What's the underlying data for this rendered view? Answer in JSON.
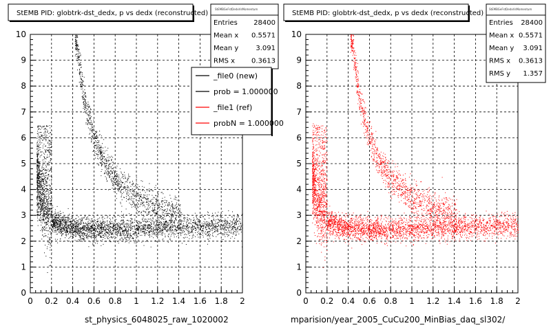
{
  "panels": [
    {
      "title": "StEMB PID: globtrk-dst_dedx,  p vs dedx (reconstructed)",
      "xaxis_title": "st_physics_6048025_raw_1020002",
      "stats": {
        "header": "StEMBGeFstDedxVsMomentum",
        "rows": [
          {
            "label": "Entries",
            "value": "28400"
          },
          {
            "label": "Mean x",
            "value": "0.5571"
          },
          {
            "label": "Mean y",
            "value": "3.091"
          },
          {
            "label": "RMS x",
            "value": "0.3613"
          }
        ]
      },
      "legend": [
        {
          "label": "_file0 (new)",
          "color": "#000000"
        },
        {
          "label": "prob = 1.000000",
          "color": "#000000"
        },
        {
          "label": "_file1 (ref)",
          "color": "#ff0000"
        },
        {
          "label": "probN = 1.000000",
          "color": "#ff0000"
        }
      ],
      "marker_color": "#000000"
    },
    {
      "title": "StEMB PID: globtrk-dst_dedx,  p vs dedx (reconstructed)",
      "xaxis_title": "mparision/year_2005_CuCu200_MinBias_daq_sl302/",
      "stats": {
        "header": "StEMBGeFstDedxVsMomentum",
        "rows": [
          {
            "label": "Entries",
            "value": "28400"
          },
          {
            "label": "Mean x",
            "value": "0.5571"
          },
          {
            "label": "Mean y",
            "value": "3.091"
          },
          {
            "label": "RMS x",
            "value": "0.3613"
          },
          {
            "label": "RMS y",
            "value": "1.357"
          }
        ]
      },
      "legend": [],
      "marker_color": "#ff0000"
    }
  ],
  "chart_data": [
    {
      "type": "scatter",
      "title": "StEMB PID: globtrk-dst_dedx,  p vs dedx (reconstructed)",
      "xlabel": "st_physics_6048025_raw_1020002",
      "ylabel": "",
      "xlim": [
        0,
        2
      ],
      "ylim": [
        0,
        10
      ],
      "xticks": [
        0,
        0.2,
        0.4,
        0.6,
        0.8,
        1,
        1.2,
        1.4,
        1.6,
        1.8,
        2
      ],
      "yticks": [
        0,
        1,
        2,
        3,
        4,
        5,
        6,
        7,
        8,
        9,
        10
      ],
      "grid": true,
      "series": [
        {
          "name": "_file0 (new)",
          "color": "#000000",
          "bands": [
            {
              "x": [
                0.06,
                0.1,
                0.15,
                0.2,
                0.3,
                0.4,
                0.6,
                0.8,
                1.0,
                1.4,
                2.0
              ],
              "y": [
                4.6,
                3.6,
                3.1,
                2.8,
                2.6,
                2.5,
                2.45,
                2.45,
                2.5,
                2.55,
                2.6
              ]
            },
            {
              "x": [
                0.42,
                0.47,
                0.5,
                0.55,
                0.6,
                0.7,
                0.8,
                1.0,
                1.2,
                1.4
              ],
              "y": [
                10,
                8.6,
                7.6,
                6.8,
                6.0,
                5.0,
                4.4,
                3.7,
                3.3,
                3.05
              ]
            }
          ]
        }
      ]
    },
    {
      "type": "scatter",
      "title": "StEMB PID: globtrk-dst_dedx,  p vs dedx (reconstructed)",
      "xlabel": "mparision/year_2005_CuCu200_MinBias_daq_sl302/",
      "ylabel": "",
      "xlim": [
        0,
        2
      ],
      "ylim": [
        0,
        10
      ],
      "xticks": [
        0,
        0.2,
        0.4,
        0.6,
        0.8,
        1,
        1.2,
        1.4,
        1.6,
        1.8,
        2
      ],
      "yticks": [
        0,
        1,
        2,
        3,
        4,
        5,
        6,
        7,
        8,
        9,
        10
      ],
      "grid": true,
      "series": [
        {
          "name": "_file1 (ref)",
          "color": "#ff0000",
          "bands": [
            {
              "x": [
                0.06,
                0.1,
                0.15,
                0.2,
                0.3,
                0.4,
                0.6,
                0.8,
                1.0,
                1.4,
                2.0
              ],
              "y": [
                4.6,
                3.6,
                3.1,
                2.8,
                2.6,
                2.5,
                2.45,
                2.45,
                2.5,
                2.55,
                2.6
              ]
            },
            {
              "x": [
                0.42,
                0.47,
                0.5,
                0.55,
                0.6,
                0.7,
                0.8,
                1.0,
                1.2,
                1.4
              ],
              "y": [
                10,
                8.6,
                7.6,
                6.8,
                6.0,
                5.0,
                4.4,
                3.7,
                3.3,
                3.05
              ]
            }
          ]
        }
      ]
    }
  ]
}
